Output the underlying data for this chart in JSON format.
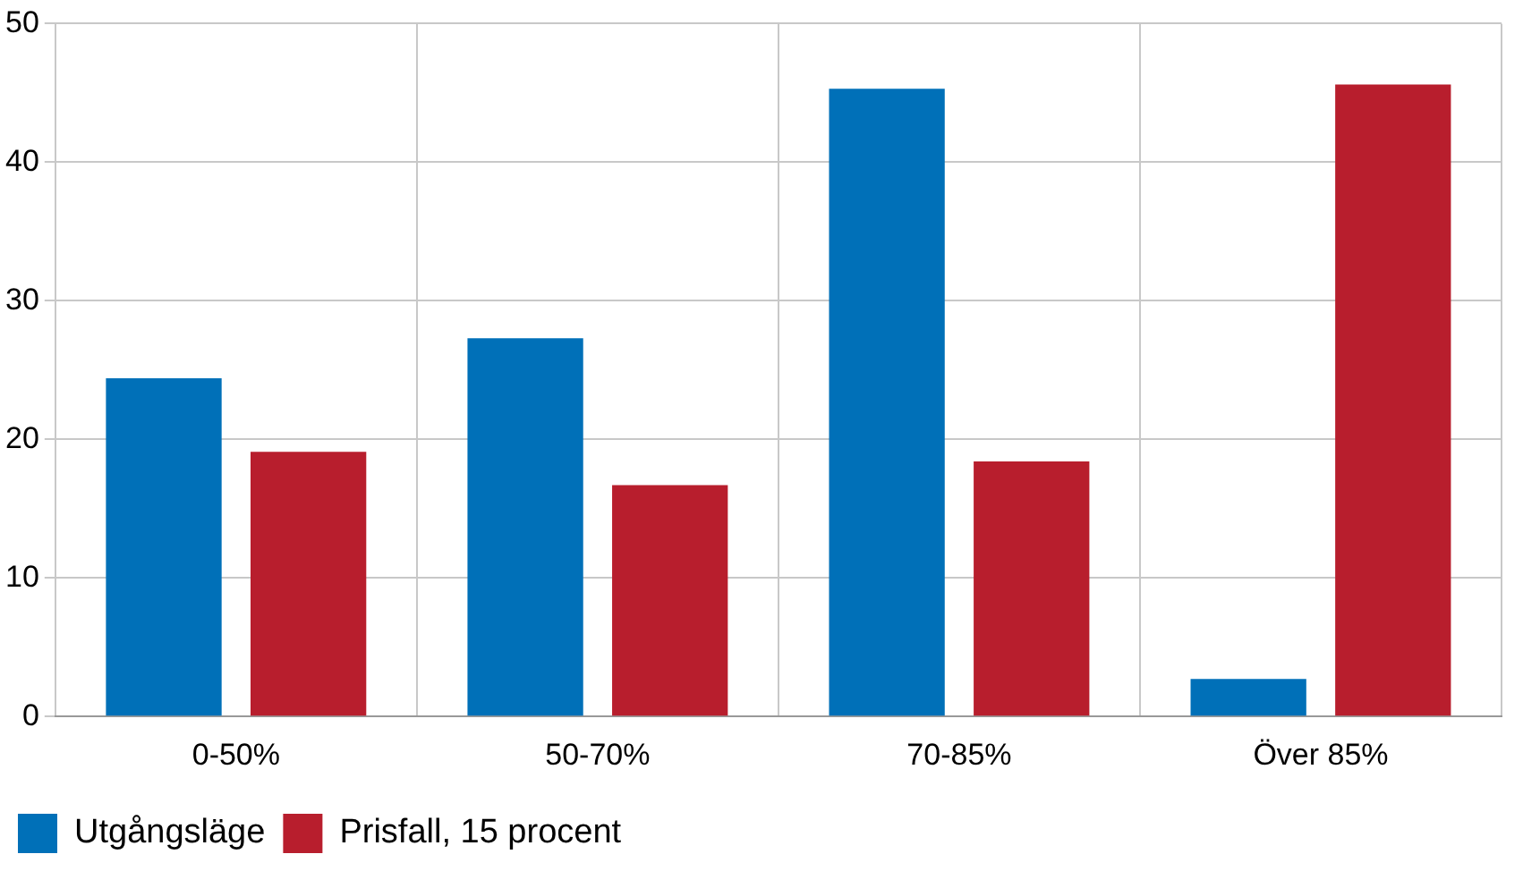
{
  "chart_data": {
    "type": "bar",
    "categories": [
      "0-50%",
      "50-70%",
      "70-85%",
      "Över 85%"
    ],
    "series": [
      {
        "name": "Utgångsläge",
        "color": "#0070b8",
        "values": [
          24.4,
          27.3,
          45.3,
          2.7
        ]
      },
      {
        "name": "Prisfall, 15 procent",
        "color": "#b81e2d",
        "values": [
          19.1,
          16.7,
          18.4,
          45.6
        ]
      }
    ],
    "ylim": [
      0,
      50
    ],
    "yticks": [
      0,
      10,
      20,
      30,
      40,
      50
    ],
    "grid": true,
    "legend": "bottom left"
  }
}
